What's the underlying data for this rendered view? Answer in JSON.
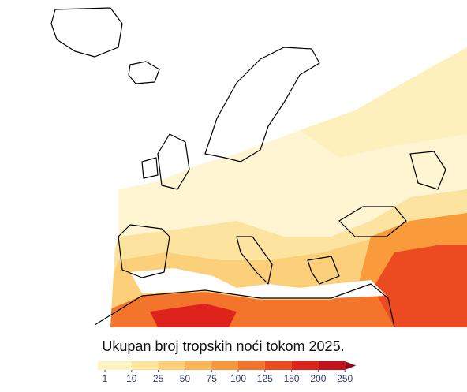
{
  "title": "Ukupan broj tropskih noći tokom 2025.",
  "colorbar": {
    "ticks": [
      1,
      10,
      25,
      50,
      75,
      100,
      125,
      150,
      200,
      250
    ],
    "colors": [
      "#fff2c2",
      "#fde49c",
      "#fccf78",
      "#fbb657",
      "#f9973b",
      "#f3752b",
      "#ea4a20",
      "#dd231b",
      "#c2121c",
      "#8e0b1b"
    ],
    "tick_color": "#2c3e70"
  }
}
